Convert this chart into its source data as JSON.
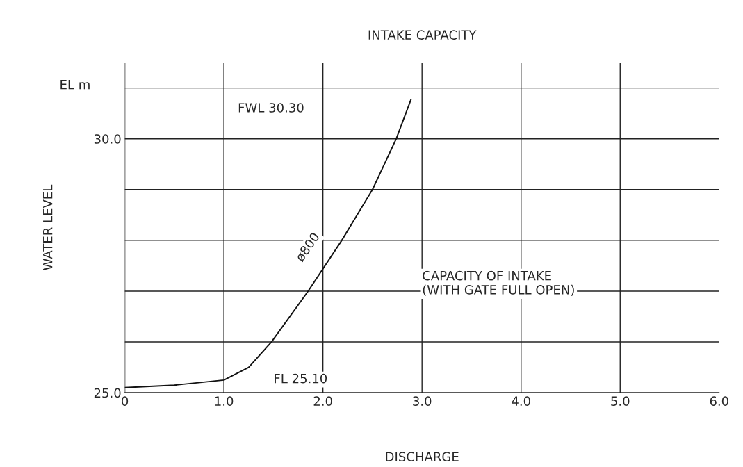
{
  "chart_data": {
    "type": "line",
    "title": "INTAKE CAPACITY",
    "xlabel": "DISCHARGE",
    "ylabel": "WATER LEVEL",
    "x": [
      0,
      0.5,
      1.0,
      1.25,
      1.48,
      1.85,
      2.19,
      2.5,
      2.74,
      2.89
    ],
    "series": [
      {
        "color": "#111111",
        "values": [
          25.1,
          25.15,
          25.25,
          25.5,
          26.0,
          27.0,
          28.0,
          29.0,
          30.0,
          30.78
        ]
      }
    ],
    "xlim": [
      0,
      6
    ],
    "ylim": [
      25,
      31.5
    ],
    "xticks": [
      {
        "value": 0,
        "label": "0"
      },
      {
        "value": 1,
        "label": "1.0"
      },
      {
        "value": 2,
        "label": "2.0"
      },
      {
        "value": 3,
        "label": "3.0"
      },
      {
        "value": 4,
        "label": "4.0"
      },
      {
        "value": 5,
        "label": "5.0"
      },
      {
        "value": 6,
        "label": "6.0"
      }
    ],
    "yticks": [
      {
        "value": 25,
        "label": "25.0"
      },
      {
        "value": 26,
        "label": null
      },
      {
        "value": 27,
        "label": null
      },
      {
        "value": 28,
        "label": null
      },
      {
        "value": 29,
        "label": null
      },
      {
        "value": 30,
        "label": "30.0"
      },
      {
        "value": 31,
        "label": null
      }
    ],
    "grid": true,
    "marker": "none",
    "line_style": "solid",
    "annotations": [
      "FWL 30.30",
      "FL 25.10",
      "ø800",
      "EL m",
      "CAPACITY OF INTAKE\n(WITH GATE FULL OPEN)"
    ]
  }
}
